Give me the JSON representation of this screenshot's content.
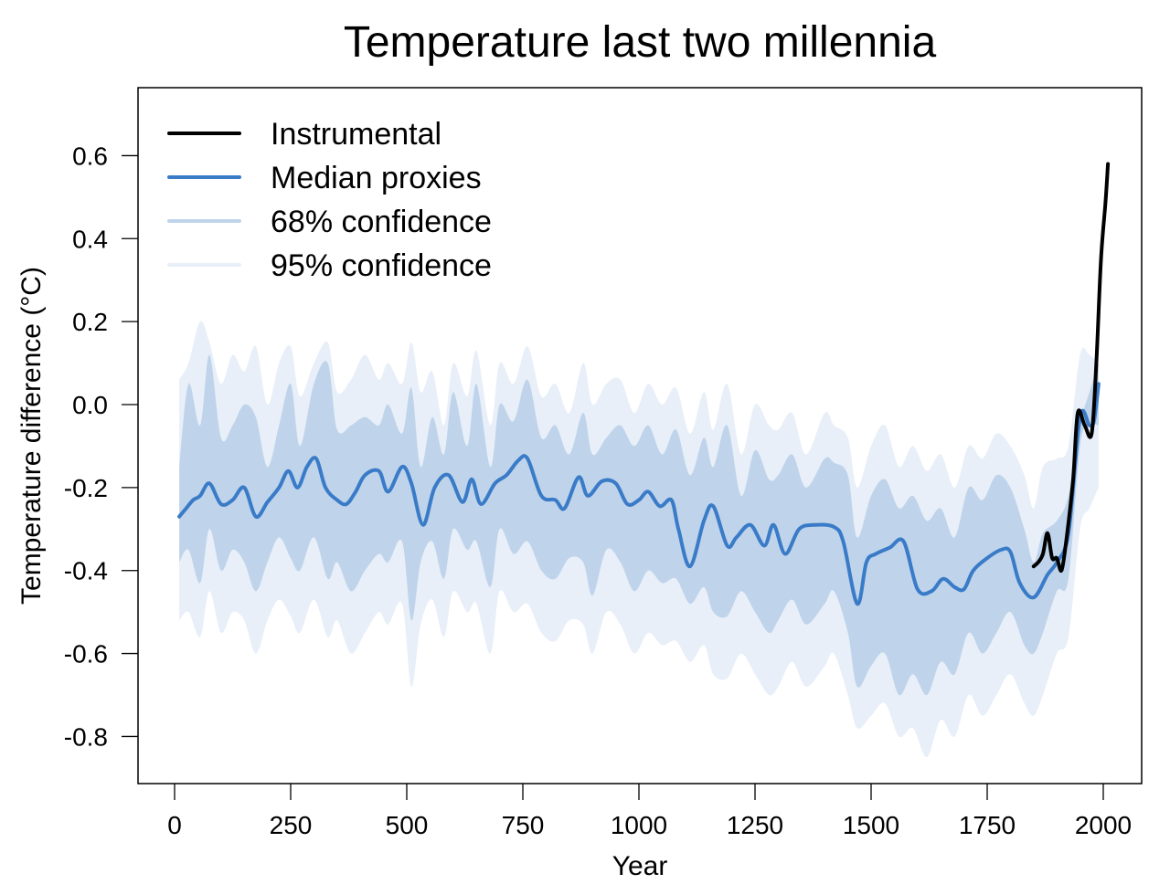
{
  "chart_data": {
    "type": "line",
    "title": "Temperature last two millennia",
    "xlabel": "Year",
    "ylabel": "Temperature difference (°C)",
    "xlim": [
      -30,
      2130
    ],
    "ylim": [
      -0.9,
      0.76
    ],
    "xticks": [
      0,
      250,
      500,
      750,
      1000,
      1250,
      1500,
      1750,
      2000
    ],
    "xtick_labels": [
      "0",
      "250",
      "500",
      "750",
      "1000",
      "1250",
      "1500",
      "1750",
      "2000"
    ],
    "yticks": [
      0.6,
      0.4,
      0.2,
      0.0,
      -0.2,
      -0.4,
      -0.6,
      -0.8
    ],
    "ytick_labels": [
      "0.6",
      "0.4",
      "0.2",
      "0.0",
      "-0.2",
      "-0.4",
      "-0.6",
      "-0.8"
    ],
    "grid": false,
    "legend_position": "top-left",
    "legend": [
      {
        "label": "Instrumental",
        "color": "#000000"
      },
      {
        "label": "Median proxies",
        "color": "#3a7bc8"
      },
      {
        "label": "68% confidence",
        "color": "#bfd4eb"
      },
      {
        "label": "95% confidence",
        "color": "#e8eff8"
      }
    ],
    "series": [
      {
        "name": "Median proxies",
        "color": "#3a7bc8",
        "x": [
          10,
          25,
          40,
          55,
          75,
          100,
          125,
          150,
          175,
          200,
          225,
          245,
          265,
          285,
          305,
          325,
          350,
          370,
          390,
          410,
          440,
          460,
          490,
          510,
          535,
          560,
          590,
          620,
          640,
          660,
          690,
          715,
          740,
          760,
          790,
          820,
          840,
          870,
          890,
          920,
          950,
          975,
          1000,
          1020,
          1045,
          1070,
          1085,
          1110,
          1140,
          1160,
          1190,
          1210,
          1240,
          1270,
          1290,
          1315,
          1345,
          1380,
          1420,
          1440,
          1470,
          1490,
          1510,
          1540,
          1570,
          1600,
          1630,
          1655,
          1680,
          1700,
          1720,
          1750,
          1780,
          1800,
          1820,
          1850,
          1880,
          1900,
          1925,
          1950,
          1970,
          1980,
          1990
        ],
        "y": [
          -0.27,
          -0.25,
          -0.23,
          -0.22,
          -0.19,
          -0.24,
          -0.23,
          -0.2,
          -0.27,
          -0.235,
          -0.2,
          -0.16,
          -0.2,
          -0.15,
          -0.13,
          -0.2,
          -0.23,
          -0.24,
          -0.21,
          -0.17,
          -0.16,
          -0.21,
          -0.15,
          -0.19,
          -0.29,
          -0.2,
          -0.17,
          -0.235,
          -0.18,
          -0.24,
          -0.19,
          -0.17,
          -0.135,
          -0.13,
          -0.22,
          -0.23,
          -0.25,
          -0.175,
          -0.22,
          -0.185,
          -0.19,
          -0.24,
          -0.23,
          -0.21,
          -0.245,
          -0.23,
          -0.3,
          -0.39,
          -0.28,
          -0.245,
          -0.34,
          -0.32,
          -0.29,
          -0.34,
          -0.29,
          -0.36,
          -0.3,
          -0.29,
          -0.295,
          -0.33,
          -0.48,
          -0.38,
          -0.36,
          -0.345,
          -0.33,
          -0.445,
          -0.45,
          -0.42,
          -0.44,
          -0.445,
          -0.4,
          -0.37,
          -0.35,
          -0.355,
          -0.43,
          -0.465,
          -0.41,
          -0.38,
          -0.31,
          -0.03,
          -0.05,
          -0.04,
          0.05
        ]
      },
      {
        "name": "68% confidence",
        "color": "#bfd4eb",
        "x": [
          10,
          30,
          55,
          75,
          100,
          125,
          150,
          175,
          200,
          225,
          250,
          270,
          300,
          330,
          350,
          380,
          410,
          440,
          460,
          490,
          510,
          530,
          555,
          580,
          600,
          630,
          650,
          680,
          700,
          730,
          760,
          790,
          820,
          850,
          880,
          900,
          930,
          960,
          990,
          1020,
          1050,
          1080,
          1110,
          1140,
          1160,
          1190,
          1220,
          1250,
          1280,
          1300,
          1330,
          1360,
          1400,
          1420,
          1450,
          1470,
          1500,
          1530,
          1560,
          1590,
          1620,
          1650,
          1680,
          1710,
          1740,
          1770,
          1800,
          1830,
          1850,
          1870,
          1900,
          1925,
          1950,
          1970,
          1990
        ],
        "upper": [
          -0.15,
          0.05,
          -0.05,
          0.12,
          -0.08,
          -0.05,
          0.0,
          -0.03,
          -0.15,
          -0.05,
          0.05,
          -0.1,
          0.05,
          0.1,
          -0.06,
          -0.05,
          -0.03,
          -0.05,
          0.0,
          -0.07,
          0.04,
          -0.15,
          -0.03,
          -0.12,
          0.03,
          -0.1,
          0.05,
          -0.15,
          0.0,
          -0.04,
          0.06,
          -0.08,
          -0.05,
          -0.12,
          -0.02,
          -0.12,
          -0.08,
          -0.05,
          -0.1,
          -0.05,
          -0.12,
          -0.06,
          -0.17,
          -0.08,
          -0.15,
          -0.05,
          -0.22,
          -0.11,
          -0.18,
          -0.17,
          -0.12,
          -0.2,
          -0.13,
          -0.14,
          -0.17,
          -0.32,
          -0.22,
          -0.18,
          -0.25,
          -0.22,
          -0.28,
          -0.25,
          -0.32,
          -0.2,
          -0.23,
          -0.17,
          -0.2,
          -0.3,
          -0.38,
          -0.31,
          -0.28,
          -0.22,
          -0.05,
          0.03,
          0.1
        ],
        "lower": [
          -0.38,
          -0.35,
          -0.43,
          -0.3,
          -0.4,
          -0.35,
          -0.38,
          -0.45,
          -0.38,
          -0.32,
          -0.37,
          -0.4,
          -0.32,
          -0.42,
          -0.38,
          -0.45,
          -0.4,
          -0.36,
          -0.38,
          -0.33,
          -0.52,
          -0.38,
          -0.33,
          -0.42,
          -0.3,
          -0.35,
          -0.33,
          -0.44,
          -0.3,
          -0.36,
          -0.33,
          -0.4,
          -0.42,
          -0.37,
          -0.38,
          -0.46,
          -0.35,
          -0.38,
          -0.45,
          -0.4,
          -0.43,
          -0.42,
          -0.48,
          -0.44,
          -0.5,
          -0.51,
          -0.45,
          -0.5,
          -0.55,
          -0.52,
          -0.47,
          -0.53,
          -0.48,
          -0.45,
          -0.55,
          -0.68,
          -0.63,
          -0.6,
          -0.7,
          -0.65,
          -0.7,
          -0.62,
          -0.65,
          -0.55,
          -0.6,
          -0.55,
          -0.5,
          -0.58,
          -0.6,
          -0.55,
          -0.45,
          -0.42,
          -0.1,
          -0.05,
          -0.05
        ]
      },
      {
        "name": "95% confidence",
        "color": "#e8eff8",
        "x": [
          10,
          30,
          55,
          75,
          100,
          125,
          150,
          175,
          200,
          225,
          250,
          270,
          300,
          330,
          350,
          380,
          410,
          440,
          460,
          490,
          510,
          530,
          555,
          580,
          600,
          630,
          650,
          680,
          700,
          730,
          760,
          790,
          820,
          850,
          880,
          900,
          930,
          960,
          990,
          1020,
          1050,
          1080,
          1110,
          1140,
          1160,
          1190,
          1220,
          1250,
          1280,
          1300,
          1330,
          1360,
          1400,
          1420,
          1450,
          1470,
          1500,
          1530,
          1560,
          1590,
          1620,
          1650,
          1680,
          1710,
          1740,
          1770,
          1800,
          1830,
          1850,
          1870,
          1900,
          1925,
          1950,
          1970,
          1990
        ],
        "upper": [
          0.06,
          0.1,
          0.2,
          0.15,
          0.05,
          0.12,
          0.08,
          0.14,
          0.0,
          0.1,
          0.14,
          0.02,
          0.1,
          0.15,
          0.03,
          0.06,
          0.12,
          0.06,
          0.1,
          0.05,
          0.15,
          0.03,
          0.08,
          -0.05,
          0.1,
          0.02,
          0.13,
          -0.05,
          0.1,
          0.05,
          0.14,
          0.02,
          0.05,
          -0.02,
          0.1,
          0.0,
          0.05,
          0.06,
          -0.02,
          0.05,
          0.0,
          0.04,
          -0.07,
          0.03,
          -0.06,
          0.05,
          -0.12,
          0.0,
          -0.05,
          -0.06,
          -0.02,
          -0.12,
          -0.02,
          -0.05,
          -0.08,
          -0.2,
          -0.1,
          -0.05,
          -0.15,
          -0.1,
          -0.16,
          -0.12,
          -0.2,
          -0.1,
          -0.13,
          -0.07,
          -0.1,
          -0.17,
          -0.25,
          -0.15,
          -0.13,
          -0.1,
          0.12,
          0.12,
          0.1
        ],
        "lower": [
          -0.52,
          -0.5,
          -0.56,
          -0.45,
          -0.55,
          -0.5,
          -0.52,
          -0.6,
          -0.52,
          -0.47,
          -0.51,
          -0.55,
          -0.47,
          -0.56,
          -0.52,
          -0.6,
          -0.55,
          -0.5,
          -0.53,
          -0.48,
          -0.68,
          -0.53,
          -0.47,
          -0.56,
          -0.45,
          -0.5,
          -0.48,
          -0.6,
          -0.45,
          -0.5,
          -0.48,
          -0.55,
          -0.57,
          -0.52,
          -0.53,
          -0.6,
          -0.5,
          -0.53,
          -0.6,
          -0.55,
          -0.58,
          -0.57,
          -0.62,
          -0.58,
          -0.65,
          -0.66,
          -0.6,
          -0.65,
          -0.7,
          -0.68,
          -0.62,
          -0.68,
          -0.63,
          -0.6,
          -0.7,
          -0.78,
          -0.75,
          -0.72,
          -0.8,
          -0.78,
          -0.85,
          -0.76,
          -0.8,
          -0.7,
          -0.75,
          -0.7,
          -0.65,
          -0.72,
          -0.75,
          -0.7,
          -0.6,
          -0.56,
          -0.3,
          -0.25,
          -0.2
        ]
      },
      {
        "name": "Instrumental",
        "color": "#000000",
        "x": [
          1850,
          1860,
          1870,
          1880,
          1890,
          1900,
          1910,
          1920,
          1935,
          1945,
          1960,
          1975,
          1985,
          1995,
          2005,
          2010
        ],
        "y": [
          -0.39,
          -0.38,
          -0.36,
          -0.31,
          -0.37,
          -0.37,
          -0.4,
          -0.33,
          -0.18,
          -0.02,
          -0.05,
          -0.07,
          0.1,
          0.35,
          0.49,
          0.58
        ]
      }
    ]
  }
}
